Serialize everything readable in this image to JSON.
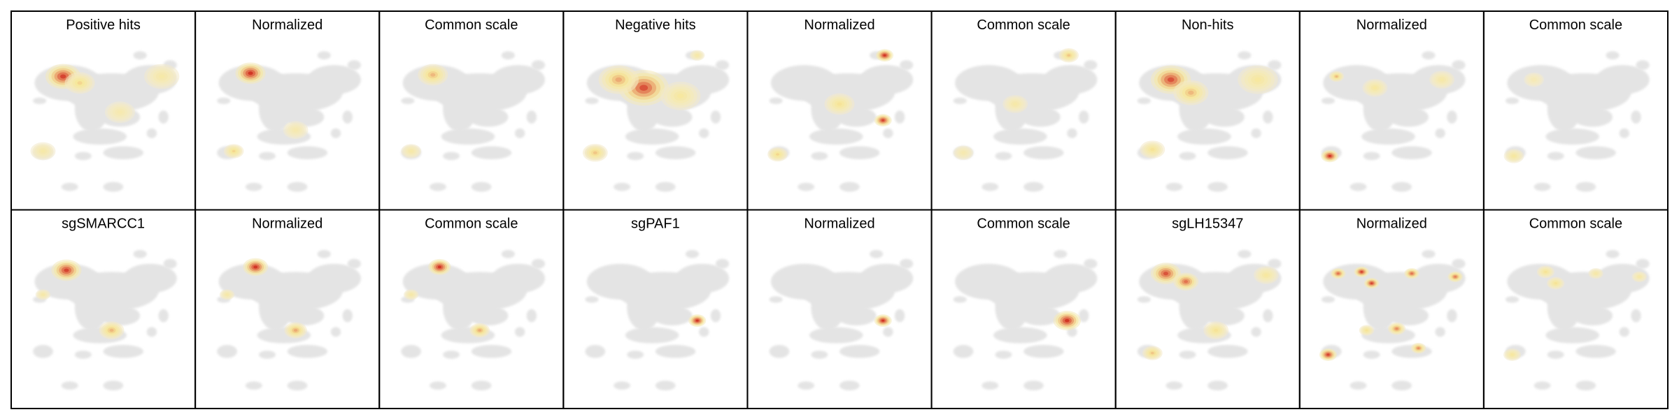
{
  "figure": {
    "rows": [
      {
        "panels": [
          {
            "title": "Positive hits"
          },
          {
            "title": "Normalized"
          },
          {
            "title": "Common scale"
          },
          {
            "title": "Negative hits"
          },
          {
            "title": "Normalized"
          },
          {
            "title": "Common scale"
          },
          {
            "title": "Non-hits"
          },
          {
            "title": "Normalized"
          },
          {
            "title": "Common scale"
          }
        ]
      },
      {
        "panels": [
          {
            "title": "sgSMARCC1"
          },
          {
            "title": "Normalized"
          },
          {
            "title": "Common scale"
          },
          {
            "title": "sgPAF1"
          },
          {
            "title": "Normalized"
          },
          {
            "title": "Common scale"
          },
          {
            "title": "sgLH15347"
          },
          {
            "title": "Normalized"
          },
          {
            "title": "Common scale"
          }
        ]
      }
    ]
  },
  "chart_data": {
    "type": "heatmap",
    "description_colors": {
      "background_cells": "#e4e4e4",
      "low": "#f3ebd3",
      "mid": "#f6e79a",
      "high": "#e06a4a",
      "peak": "#c00000"
    },
    "axes_visible": false,
    "grid": false,
    "legend": "none",
    "panels": [
      {
        "row": 0,
        "col": 0,
        "title": "Positive hits",
        "hotspots": [
          {
            "x": 0.26,
            "y": 0.23,
            "intensity": 0.95,
            "spread": 0.07
          },
          {
            "x": 0.36,
            "y": 0.27,
            "intensity": 0.45,
            "spread": 0.06
          },
          {
            "x": 0.85,
            "y": 0.23,
            "intensity": 0.3,
            "spread": 0.07
          },
          {
            "x": 0.14,
            "y": 0.69,
            "intensity": 0.3,
            "spread": 0.05
          },
          {
            "x": 0.6,
            "y": 0.45,
            "intensity": 0.25,
            "spread": 0.06
          }
        ]
      },
      {
        "row": 0,
        "col": 1,
        "title": "Normalized",
        "hotspots": [
          {
            "x": 0.28,
            "y": 0.21,
            "intensity": 1.0,
            "spread": 0.06
          },
          {
            "x": 0.18,
            "y": 0.69,
            "intensity": 0.45,
            "spread": 0.04
          },
          {
            "x": 0.55,
            "y": 0.56,
            "intensity": 0.25,
            "spread": 0.05
          }
        ]
      },
      {
        "row": 0,
        "col": 2,
        "title": "Common scale",
        "hotspots": [
          {
            "x": 0.27,
            "y": 0.22,
            "intensity": 0.55,
            "spread": 0.06
          },
          {
            "x": 0.14,
            "y": 0.69,
            "intensity": 0.3,
            "spread": 0.04
          }
        ]
      },
      {
        "row": 0,
        "col": 3,
        "title": "Negative hits",
        "hotspots": [
          {
            "x": 0.43,
            "y": 0.3,
            "intensity": 0.9,
            "spread": 0.1
          },
          {
            "x": 0.28,
            "y": 0.25,
            "intensity": 0.6,
            "spread": 0.08
          },
          {
            "x": 0.65,
            "y": 0.35,
            "intensity": 0.35,
            "spread": 0.08
          },
          {
            "x": 0.14,
            "y": 0.7,
            "intensity": 0.5,
            "spread": 0.05
          },
          {
            "x": 0.75,
            "y": 0.1,
            "intensity": 0.3,
            "spread": 0.03
          }
        ]
      },
      {
        "row": 0,
        "col": 4,
        "title": "Normalized",
        "hotspots": [
          {
            "x": 0.77,
            "y": 0.1,
            "intensity": 1.0,
            "spread": 0.035
          },
          {
            "x": 0.76,
            "y": 0.5,
            "intensity": 0.95,
            "spread": 0.035
          },
          {
            "x": 0.5,
            "y": 0.4,
            "intensity": 0.4,
            "spread": 0.06
          },
          {
            "x": 0.13,
            "y": 0.71,
            "intensity": 0.45,
            "spread": 0.04
          }
        ]
      },
      {
        "row": 0,
        "col": 5,
        "title": "Common scale",
        "hotspots": [
          {
            "x": 0.77,
            "y": 0.1,
            "intensity": 0.5,
            "spread": 0.04
          },
          {
            "x": 0.45,
            "y": 0.4,
            "intensity": 0.3,
            "spread": 0.05
          },
          {
            "x": 0.14,
            "y": 0.7,
            "intensity": 0.25,
            "spread": 0.04
          }
        ]
      },
      {
        "row": 0,
        "col": 6,
        "title": "Non-hits",
        "hotspots": [
          {
            "x": 0.28,
            "y": 0.25,
            "intensity": 0.9,
            "spread": 0.08
          },
          {
            "x": 0.4,
            "y": 0.33,
            "intensity": 0.55,
            "spread": 0.07
          },
          {
            "x": 0.8,
            "y": 0.25,
            "intensity": 0.35,
            "spread": 0.08
          },
          {
            "x": 0.17,
            "y": 0.68,
            "intensity": 0.4,
            "spread": 0.05
          }
        ]
      },
      {
        "row": 0,
        "col": 7,
        "title": "Normalized",
        "hotspots": [
          {
            "x": 0.13,
            "y": 0.72,
            "intensity": 1.0,
            "spread": 0.035
          },
          {
            "x": 0.17,
            "y": 0.23,
            "intensity": 0.55,
            "spread": 0.03
          },
          {
            "x": 0.4,
            "y": 0.3,
            "intensity": 0.35,
            "spread": 0.05
          },
          {
            "x": 0.8,
            "y": 0.25,
            "intensity": 0.3,
            "spread": 0.05
          }
        ]
      },
      {
        "row": 0,
        "col": 8,
        "title": "Common scale",
        "hotspots": [
          {
            "x": 0.13,
            "y": 0.72,
            "intensity": 0.35,
            "spread": 0.04
          },
          {
            "x": 0.25,
            "y": 0.25,
            "intensity": 0.2,
            "spread": 0.04
          }
        ]
      },
      {
        "row": 1,
        "col": 0,
        "title": "sgSMARCC1",
        "hotspots": [
          {
            "x": 0.28,
            "y": 0.2,
            "intensity": 0.95,
            "spread": 0.06
          },
          {
            "x": 0.55,
            "y": 0.57,
            "intensity": 0.55,
            "spread": 0.05
          },
          {
            "x": 0.14,
            "y": 0.35,
            "intensity": 0.3,
            "spread": 0.03
          }
        ]
      },
      {
        "row": 1,
        "col": 1,
        "title": "Normalized",
        "hotspots": [
          {
            "x": 0.31,
            "y": 0.18,
            "intensity": 1.0,
            "spread": 0.05
          },
          {
            "x": 0.55,
            "y": 0.57,
            "intensity": 0.6,
            "spread": 0.045
          },
          {
            "x": 0.14,
            "y": 0.35,
            "intensity": 0.3,
            "spread": 0.03
          }
        ]
      },
      {
        "row": 1,
        "col": 2,
        "title": "Common scale",
        "hotspots": [
          {
            "x": 0.31,
            "y": 0.18,
            "intensity": 1.0,
            "spread": 0.045
          },
          {
            "x": 0.55,
            "y": 0.57,
            "intensity": 0.6,
            "spread": 0.04
          },
          {
            "x": 0.14,
            "y": 0.35,
            "intensity": 0.3,
            "spread": 0.03
          }
        ]
      },
      {
        "row": 1,
        "col": 3,
        "title": "sgPAF1",
        "hotspots": [
          {
            "x": 0.75,
            "y": 0.51,
            "intensity": 1.0,
            "spread": 0.035
          }
        ]
      },
      {
        "row": 1,
        "col": 4,
        "title": "Normalized",
        "hotspots": [
          {
            "x": 0.76,
            "y": 0.51,
            "intensity": 1.0,
            "spread": 0.035
          }
        ]
      },
      {
        "row": 1,
        "col": 5,
        "title": "Common scale",
        "hotspots": [
          {
            "x": 0.76,
            "y": 0.51,
            "intensity": 1.0,
            "spread": 0.055
          }
        ]
      },
      {
        "row": 1,
        "col": 6,
        "title": "sgLH15347",
        "hotspots": [
          {
            "x": 0.25,
            "y": 0.22,
            "intensity": 0.9,
            "spread": 0.06
          },
          {
            "x": 0.37,
            "y": 0.27,
            "intensity": 0.8,
            "spread": 0.05
          },
          {
            "x": 0.85,
            "y": 0.23,
            "intensity": 0.35,
            "spread": 0.05
          },
          {
            "x": 0.17,
            "y": 0.71,
            "intensity": 0.5,
            "spread": 0.04
          },
          {
            "x": 0.55,
            "y": 0.57,
            "intensity": 0.4,
            "spread": 0.05
          }
        ]
      },
      {
        "row": 1,
        "col": 7,
        "title": "Normalized",
        "hotspots": [
          {
            "x": 0.18,
            "y": 0.22,
            "intensity": 0.8,
            "spread": 0.03
          },
          {
            "x": 0.32,
            "y": 0.21,
            "intensity": 0.95,
            "spread": 0.03
          },
          {
            "x": 0.38,
            "y": 0.28,
            "intensity": 0.95,
            "spread": 0.03
          },
          {
            "x": 0.62,
            "y": 0.22,
            "intensity": 0.8,
            "spread": 0.03
          },
          {
            "x": 0.88,
            "y": 0.24,
            "intensity": 0.75,
            "spread": 0.03
          },
          {
            "x": 0.12,
            "y": 0.72,
            "intensity": 0.95,
            "spread": 0.035
          },
          {
            "x": 0.53,
            "y": 0.56,
            "intensity": 0.7,
            "spread": 0.035
          },
          {
            "x": 0.66,
            "y": 0.68,
            "intensity": 0.7,
            "spread": 0.03
          },
          {
            "x": 0.35,
            "y": 0.57,
            "intensity": 0.4,
            "spread": 0.03
          }
        ]
      },
      {
        "row": 1,
        "col": 8,
        "title": "Common scale",
        "hotspots": [
          {
            "x": 0.32,
            "y": 0.21,
            "intensity": 0.4,
            "spread": 0.035
          },
          {
            "x": 0.38,
            "y": 0.28,
            "intensity": 0.4,
            "spread": 0.035
          },
          {
            "x": 0.62,
            "y": 0.22,
            "intensity": 0.3,
            "spread": 0.03
          },
          {
            "x": 0.12,
            "y": 0.72,
            "intensity": 0.35,
            "spread": 0.035
          },
          {
            "x": 0.88,
            "y": 0.24,
            "intensity": 0.3,
            "spread": 0.03
          }
        ]
      }
    ]
  }
}
